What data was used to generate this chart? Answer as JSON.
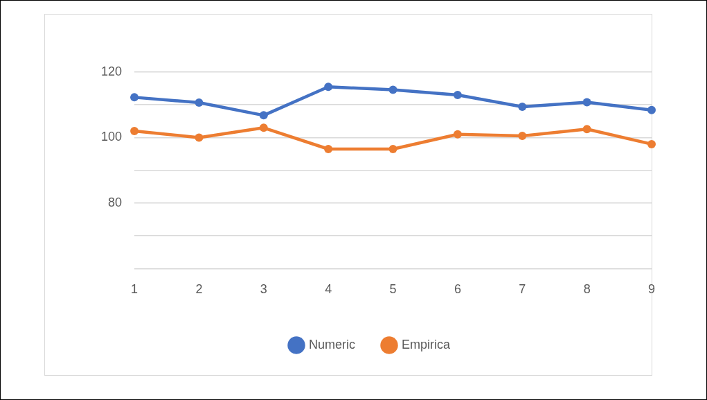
{
  "chart_data": {
    "type": "line",
    "categories": [
      "1",
      "2",
      "3",
      "4",
      "5",
      "6",
      "7",
      "8",
      "9"
    ],
    "series": [
      {
        "name": "Numeric",
        "color": "#4472c4",
        "values": [
          112.3,
          110.7,
          106.8,
          115.5,
          114.6,
          113.0,
          109.4,
          110.8,
          108.4
        ]
      },
      {
        "name": "Empirica",
        "color": "#ed7d31",
        "values": [
          102.0,
          100.0,
          103.0,
          96.5,
          96.5,
          101.0,
          100.5,
          102.6,
          98.0
        ]
      }
    ],
    "ylim": [
      60,
      120
    ],
    "yticks": [
      {
        "value": 60,
        "label": null
      },
      {
        "value": 70,
        "label": null
      },
      80,
      {
        "value": 90,
        "label": null
      },
      100,
      {
        "value": 110,
        "label": null
      },
      120
    ],
    "grid": "y",
    "legend": "bottom",
    "marker": "circle",
    "line_style": "solid"
  }
}
